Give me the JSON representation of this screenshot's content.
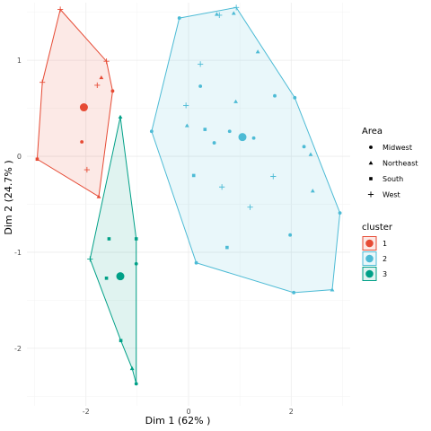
{
  "chart_data": {
    "type": "scatter",
    "title": "",
    "xlabel": "Dim 1 (62% )",
    "ylabel": "Dim 2 (24.7% )",
    "xlim": [
      -3.15,
      3.15
    ],
    "ylim": [
      -2.6,
      1.6
    ],
    "xticks": [
      -2,
      0,
      2
    ],
    "yticks": [
      -2,
      -1,
      0,
      1
    ],
    "tick_labels_x": [
      "-2",
      "0",
      "2"
    ],
    "tick_labels_y": [
      "-2",
      "-1",
      "0",
      "1"
    ],
    "grid": true,
    "legends": [
      {
        "title": "Area",
        "entries": [
          {
            "label": "Midwest",
            "shape": "circle"
          },
          {
            "label": "Northeast",
            "shape": "triangle"
          },
          {
            "label": "South",
            "shape": "square"
          },
          {
            "label": "West",
            "shape": "plus"
          }
        ]
      },
      {
        "title": "cluster",
        "entries": [
          {
            "label": "1",
            "color": "#E64B35"
          },
          {
            "label": "2",
            "color": "#4DBBD5"
          },
          {
            "label": "3",
            "color": "#00A087"
          }
        ]
      }
    ],
    "clusters": [
      {
        "name": "1",
        "color": "#E64B35",
        "hull": [
          [
            -2.5,
            1.53
          ],
          [
            -1.6,
            0.99
          ],
          [
            -1.48,
            0.68
          ],
          [
            -1.75,
            -0.42
          ],
          [
            -2.95,
            -0.03
          ],
          [
            -2.85,
            0.77
          ]
        ],
        "centroid": [
          -2.04,
          0.51
        ],
        "points": [
          {
            "x": -2.5,
            "y": 1.53,
            "shape": "plus"
          },
          {
            "x": -2.85,
            "y": 0.77,
            "shape": "plus"
          },
          {
            "x": -1.6,
            "y": 0.99,
            "shape": "plus"
          },
          {
            "x": -1.7,
            "y": 0.82,
            "shape": "triangle"
          },
          {
            "x": -1.78,
            "y": 0.74,
            "shape": "plus"
          },
          {
            "x": -1.48,
            "y": 0.68,
            "shape": "circle"
          },
          {
            "x": -2.08,
            "y": 0.15,
            "shape": "circle"
          },
          {
            "x": -2.95,
            "y": -0.03,
            "shape": "square"
          },
          {
            "x": -1.98,
            "y": -0.14,
            "shape": "plus"
          },
          {
            "x": -1.75,
            "y": -0.42,
            "shape": "triangle"
          }
        ]
      },
      {
        "name": "2",
        "color": "#4DBBD5",
        "hull": [
          [
            -0.18,
            1.44
          ],
          [
            0.93,
            1.55
          ],
          [
            2.07,
            0.61
          ],
          [
            2.95,
            -0.59
          ],
          [
            2.8,
            -1.39
          ],
          [
            2.05,
            -1.42
          ],
          [
            0.15,
            -1.11
          ],
          [
            -0.72,
            0.26
          ]
        ],
        "centroid": [
          1.05,
          0.2
        ],
        "points": [
          {
            "x": 0.93,
            "y": 1.55,
            "shape": "plus"
          },
          {
            "x": 0.55,
            "y": 1.48,
            "shape": "triangle"
          },
          {
            "x": 0.6,
            "y": 1.47,
            "shape": "plus"
          },
          {
            "x": 0.88,
            "y": 1.49,
            "shape": "triangle"
          },
          {
            "x": -0.18,
            "y": 1.44,
            "shape": "circle"
          },
          {
            "x": 1.35,
            "y": 1.09,
            "shape": "triangle"
          },
          {
            "x": 0.23,
            "y": 0.96,
            "shape": "plus"
          },
          {
            "x": 0.23,
            "y": 0.73,
            "shape": "circle"
          },
          {
            "x": 1.68,
            "y": 0.63,
            "shape": "circle"
          },
          {
            "x": 2.07,
            "y": 0.61,
            "shape": "circle"
          },
          {
            "x": 0.92,
            "y": 0.57,
            "shape": "triangle"
          },
          {
            "x": -0.05,
            "y": 0.53,
            "shape": "plus"
          },
          {
            "x": -0.03,
            "y": 0.32,
            "shape": "triangle"
          },
          {
            "x": 0.32,
            "y": 0.28,
            "shape": "square"
          },
          {
            "x": 0.8,
            "y": 0.26,
            "shape": "circle"
          },
          {
            "x": -0.72,
            "y": 0.26,
            "shape": "circle"
          },
          {
            "x": 1.27,
            "y": 0.19,
            "shape": "circle"
          },
          {
            "x": 0.5,
            "y": 0.14,
            "shape": "circle"
          },
          {
            "x": 2.25,
            "y": 0.1,
            "shape": "circle"
          },
          {
            "x": 2.38,
            "y": 0.02,
            "shape": "triangle"
          },
          {
            "x": 0.1,
            "y": -0.2,
            "shape": "square"
          },
          {
            "x": 1.65,
            "y": -0.21,
            "shape": "plus"
          },
          {
            "x": 0.65,
            "y": -0.32,
            "shape": "plus"
          },
          {
            "x": 2.42,
            "y": -0.36,
            "shape": "triangle"
          },
          {
            "x": 1.2,
            "y": -0.53,
            "shape": "plus"
          },
          {
            "x": 2.95,
            "y": -0.59,
            "shape": "circle"
          },
          {
            "x": 1.98,
            "y": -0.82,
            "shape": "circle"
          },
          {
            "x": 0.75,
            "y": -0.95,
            "shape": "square"
          },
          {
            "x": 0.15,
            "y": -1.11,
            "shape": "circle"
          },
          {
            "x": 2.8,
            "y": -1.39,
            "shape": "triangle"
          },
          {
            "x": 2.05,
            "y": -1.42,
            "shape": "circle"
          }
        ]
      },
      {
        "name": "3",
        "color": "#00A087",
        "hull": [
          [
            -1.33,
            0.41
          ],
          [
            -1.02,
            -0.86
          ],
          [
            -1.02,
            -2.37
          ],
          [
            -1.1,
            -2.21
          ],
          [
            -1.32,
            -1.92
          ],
          [
            -1.92,
            -1.07
          ]
        ],
        "centroid": [
          -1.33,
          -1.25
        ],
        "points": [
          {
            "x": -1.33,
            "y": 0.41,
            "shape": "triangle"
          },
          {
            "x": -1.02,
            "y": -0.86,
            "shape": "square"
          },
          {
            "x": -1.55,
            "y": -0.86,
            "shape": "square"
          },
          {
            "x": -1.92,
            "y": -1.07,
            "shape": "plus"
          },
          {
            "x": -1.02,
            "y": -1.12,
            "shape": "circle"
          },
          {
            "x": -1.6,
            "y": -1.27,
            "shape": "square"
          },
          {
            "x": -1.32,
            "y": -1.92,
            "shape": "square"
          },
          {
            "x": -1.1,
            "y": -2.21,
            "shape": "triangle"
          },
          {
            "x": -1.02,
            "y": -2.37,
            "shape": "circle"
          }
        ]
      }
    ]
  }
}
